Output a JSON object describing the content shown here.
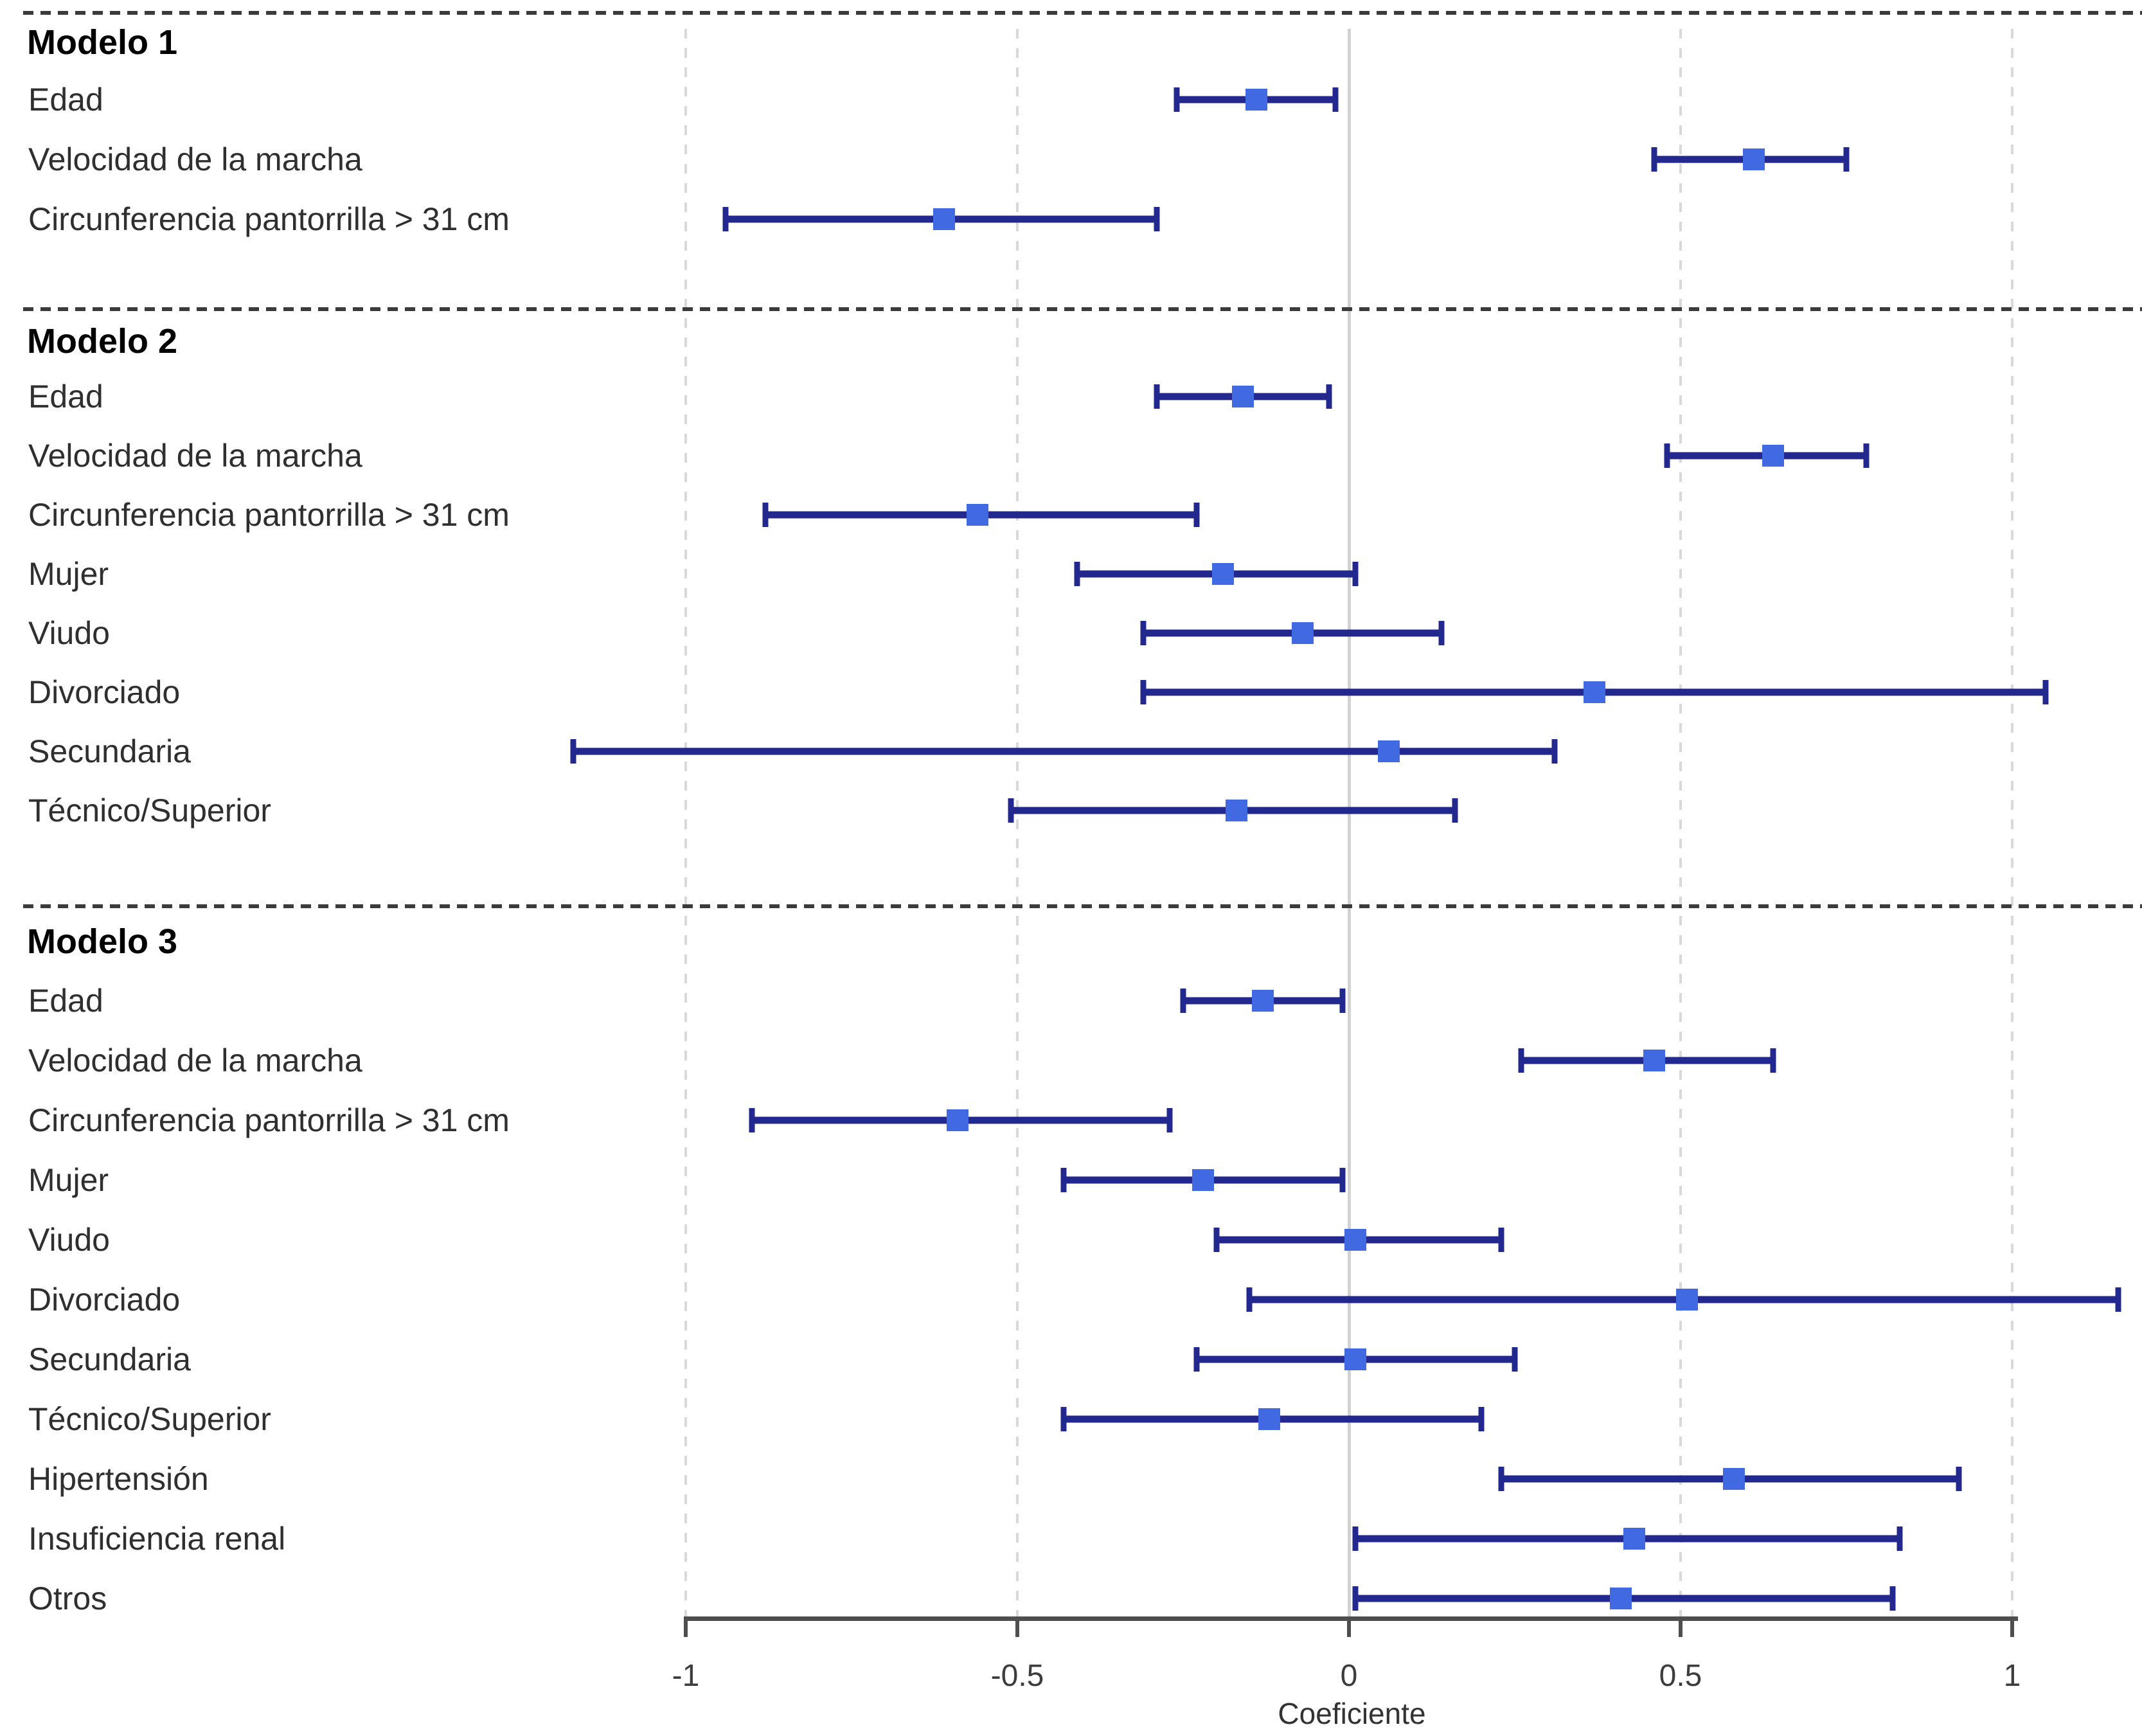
{
  "axis": {
    "label": "Coeficiente",
    "tick_labels": [
      "-1",
      "-0.5",
      "0",
      "0.5",
      "1"
    ]
  },
  "colors": {
    "ci_line": "#23288f",
    "marker": "#4169e1",
    "grid_dashed": "#d9d9d9",
    "zero_line": "#d2d2d2",
    "separator": "#3b3b3b",
    "axis": "#4e4e4e",
    "label_text": "#2f2f2f",
    "header_text": "#000000"
  },
  "chart_data": {
    "type": "forest",
    "xlabel": "Coeficiente",
    "xlim": [
      -1,
      1.2
    ],
    "xticks": [
      -1,
      -0.5,
      0,
      0.5,
      1
    ],
    "grid": true,
    "zero_reference_line": true,
    "marker_shape": "square",
    "groups": [
      {
        "label": "Modelo 1",
        "rows": [
          {
            "label": "Edad",
            "estimate": -0.14,
            "ci_low": -0.26,
            "ci_high": -0.02
          },
          {
            "label": "Velocidad de la marcha",
            "estimate": 0.61,
            "ci_low": 0.46,
            "ci_high": 0.75
          },
          {
            "label": "Circunferencia pantorrilla > 31 cm",
            "estimate": -0.61,
            "ci_low": -0.94,
            "ci_high": -0.29
          }
        ]
      },
      {
        "label": "Modelo 2",
        "rows": [
          {
            "label": "Edad",
            "estimate": -0.16,
            "ci_low": -0.29,
            "ci_high": -0.03
          },
          {
            "label": "Velocidad de la marcha",
            "estimate": 0.64,
            "ci_low": 0.48,
            "ci_high": 0.78
          },
          {
            "label": "Circunferencia pantorrilla > 31 cm",
            "estimate": -0.56,
            "ci_low": -0.88,
            "ci_high": -0.23
          },
          {
            "label": "Mujer",
            "estimate": -0.19,
            "ci_low": -0.41,
            "ci_high": 0.01
          },
          {
            "label": "Viudo",
            "estimate": -0.07,
            "ci_low": -0.31,
            "ci_high": 0.14
          },
          {
            "label": "Divorciado",
            "estimate": 0.37,
            "ci_low": -0.31,
            "ci_high": 1.05
          },
          {
            "label": "Secundaria",
            "estimate": 0.06,
            "ci_low": -1.17,
            "ci_high": 0.31
          },
          {
            "label": "Técnico/Superior",
            "estimate": -0.17,
            "ci_low": -0.51,
            "ci_high": 0.16
          }
        ]
      },
      {
        "label": "Modelo 3",
        "rows": [
          {
            "label": "Edad",
            "estimate": -0.13,
            "ci_low": -0.25,
            "ci_high": -0.01
          },
          {
            "label": "Velocidad de la marcha",
            "estimate": 0.46,
            "ci_low": 0.26,
            "ci_high": 0.64
          },
          {
            "label": "Circunferencia pantorrilla > 31 cm",
            "estimate": -0.59,
            "ci_low": -0.9,
            "ci_high": -0.27
          },
          {
            "label": "Mujer",
            "estimate": -0.22,
            "ci_low": -0.43,
            "ci_high": -0.01
          },
          {
            "label": "Viudo",
            "estimate": 0.01,
            "ci_low": -0.2,
            "ci_high": 0.23
          },
          {
            "label": "Divorciado",
            "estimate": 0.51,
            "ci_low": -0.15,
            "ci_high": 1.16
          },
          {
            "label": "Secundaria",
            "estimate": 0.01,
            "ci_low": -0.23,
            "ci_high": 0.25
          },
          {
            "label": "Técnico/Superior",
            "estimate": -0.12,
            "ci_low": -0.43,
            "ci_high": 0.2
          },
          {
            "label": "Hipertensión",
            "estimate": 0.58,
            "ci_low": 0.23,
            "ci_high": 0.92
          },
          {
            "label": "Insuficiencia renal",
            "estimate": 0.43,
            "ci_low": 0.01,
            "ci_high": 0.83
          },
          {
            "label": "Otros",
            "estimate": 0.41,
            "ci_low": 0.01,
            "ci_high": 0.82
          }
        ]
      }
    ]
  }
}
